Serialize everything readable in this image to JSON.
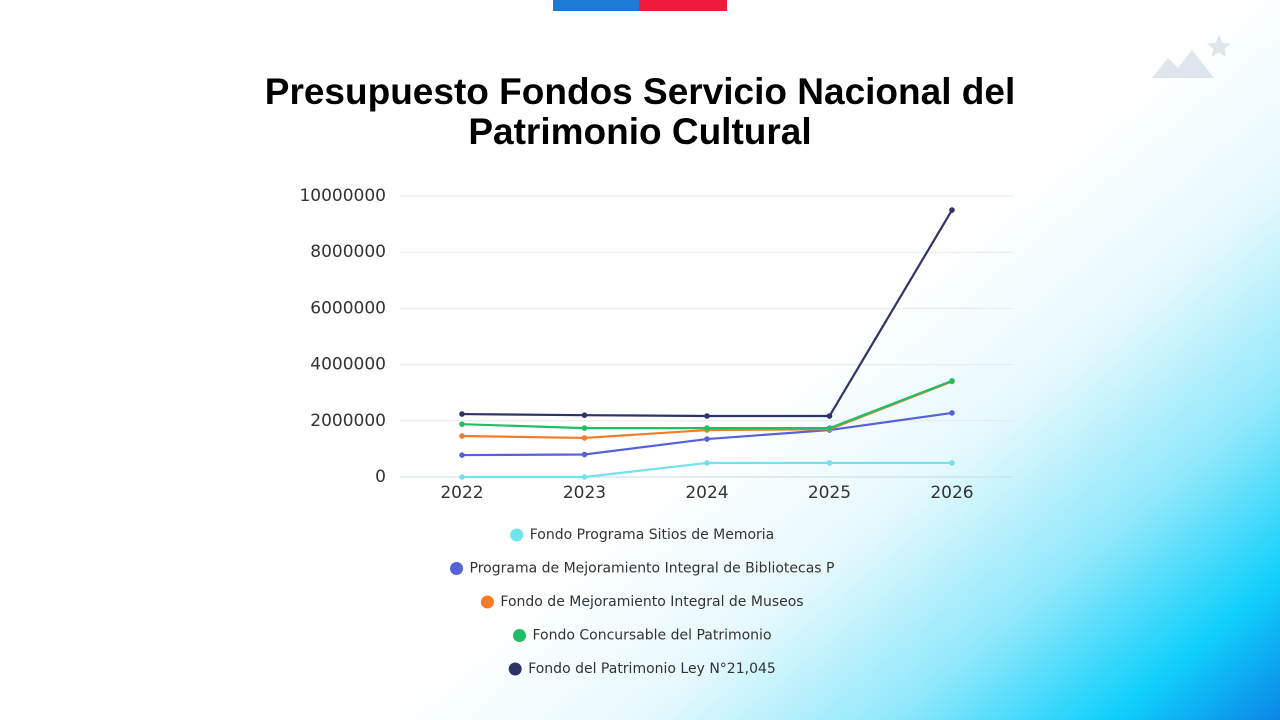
{
  "chart_data": {
    "type": "line",
    "title": "Presupuesto Fondos Servicio Nacional del Patrimonio Cultural",
    "categories": [
      "2022",
      "2023",
      "2024",
      "2025",
      "2026"
    ],
    "series": [
      {
        "name": "Fondo Programa Sitios de Memoria",
        "color": "#72e3ec",
        "values": [
          0,
          0,
          500000,
          500000,
          500000
        ]
      },
      {
        "name": "Programa de Mejoramiento Integral de Bibliotecas P",
        "color": "#5563d6",
        "values": [
          780000,
          800000,
          1350000,
          1670000,
          2280000
        ]
      },
      {
        "name": "Fondo de Mejoramiento Integral de Museos",
        "color": "#f47b2a",
        "values": [
          1460000,
          1390000,
          1670000,
          1700000,
          3400000
        ]
      },
      {
        "name": "Fondo Concursable del Patrimonio",
        "color": "#1fbf66",
        "values": [
          1880000,
          1740000,
          1740000,
          1740000,
          3420000
        ]
      },
      {
        "name": "Fondo del Patrimonio Ley N°21,045",
        "color": "#2e3466",
        "values": [
          2240000,
          2200000,
          2170000,
          2170000,
          9500000
        ]
      }
    ],
    "ylim": [
      0,
      10000000
    ],
    "yticks": [
      0,
      2000000,
      4000000,
      6000000,
      8000000,
      10000000
    ],
    "grid": true,
    "legend": "bottom"
  }
}
